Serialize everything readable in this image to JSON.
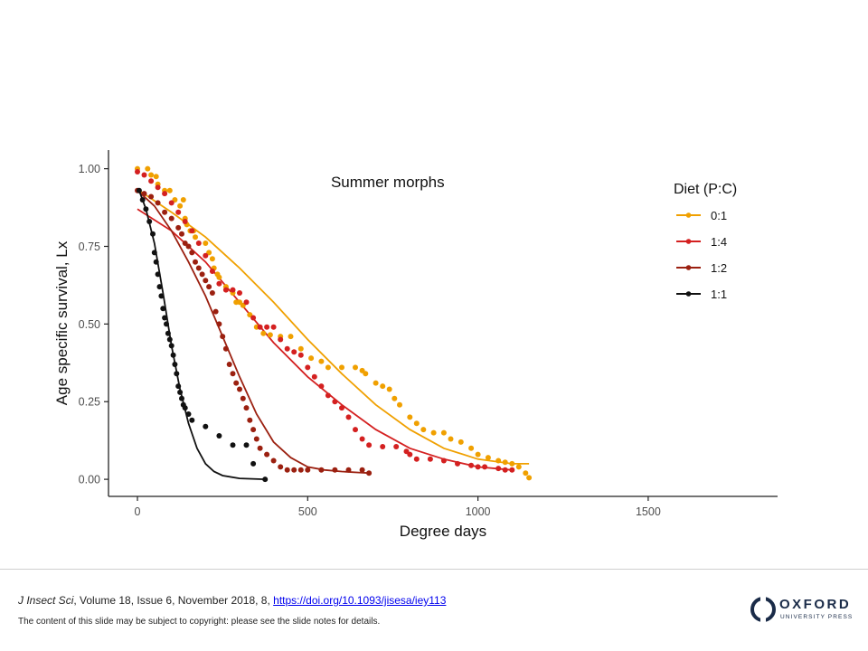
{
  "chart_data": {
    "type": "scatter",
    "title": "Summer morphs",
    "xlabel": "Degree days",
    "ylabel": "Age specific survival, Lx",
    "xlim": [
      -85,
      1880
    ],
    "ylim": [
      -0.055,
      1.06
    ],
    "x_ticks": [
      0,
      500,
      1000,
      1500
    ],
    "x_tick_labels": [
      "0",
      "500",
      "1000",
      "1500"
    ],
    "y_ticks": [
      0,
      0.25,
      0.5,
      0.75,
      1
    ],
    "y_tick_labels": [
      "0.00",
      "0.25",
      "0.50",
      "0.75",
      "1.00"
    ],
    "grid": false,
    "legend_title": "Diet (P:C)",
    "legend_position": "top-right",
    "series": [
      {
        "name": "0:1",
        "color": "#f0a000",
        "points": [
          [
            0,
            1
          ],
          [
            30,
            1
          ],
          [
            40,
            0.98
          ],
          [
            55,
            0.975
          ],
          [
            60,
            0.95
          ],
          [
            80,
            0.93
          ],
          [
            95,
            0.93
          ],
          [
            110,
            0.9
          ],
          [
            135,
            0.9
          ],
          [
            125,
            0.88
          ],
          [
            140,
            0.84
          ],
          [
            145,
            0.82
          ],
          [
            155,
            0.8
          ],
          [
            165,
            0.8
          ],
          [
            170,
            0.78
          ],
          [
            200,
            0.76
          ],
          [
            210,
            0.73
          ],
          [
            220,
            0.71
          ],
          [
            225,
            0.68
          ],
          [
            235,
            0.66
          ],
          [
            240,
            0.65
          ],
          [
            260,
            0.62
          ],
          [
            280,
            0.6
          ],
          [
            290,
            0.57
          ],
          [
            300,
            0.57
          ],
          [
            310,
            0.56
          ],
          [
            330,
            0.53
          ],
          [
            350,
            0.49
          ],
          [
            370,
            0.47
          ],
          [
            390,
            0.465
          ],
          [
            420,
            0.46
          ],
          [
            450,
            0.46
          ],
          [
            480,
            0.42
          ],
          [
            510,
            0.39
          ],
          [
            540,
            0.38
          ],
          [
            560,
            0.36
          ],
          [
            600,
            0.36
          ],
          [
            640,
            0.36
          ],
          [
            660,
            0.35
          ],
          [
            670,
            0.34
          ],
          [
            700,
            0.31
          ],
          [
            720,
            0.3
          ],
          [
            740,
            0.29
          ],
          [
            755,
            0.26
          ],
          [
            770,
            0.24
          ],
          [
            800,
            0.2
          ],
          [
            820,
            0.18
          ],
          [
            840,
            0.16
          ],
          [
            870,
            0.15
          ],
          [
            900,
            0.15
          ],
          [
            920,
            0.13
          ],
          [
            950,
            0.12
          ],
          [
            980,
            0.1
          ],
          [
            1000,
            0.08
          ],
          [
            1030,
            0.07
          ],
          [
            1060,
            0.06
          ],
          [
            1080,
            0.055
          ],
          [
            1100,
            0.05
          ],
          [
            1120,
            0.04
          ],
          [
            1140,
            0.02
          ],
          [
            1150,
            0.005
          ]
        ],
        "fit": [
          [
            5,
            0.93
          ],
          [
            100,
            0.86
          ],
          [
            200,
            0.78
          ],
          [
            300,
            0.68
          ],
          [
            400,
            0.57
          ],
          [
            500,
            0.45
          ],
          [
            600,
            0.34
          ],
          [
            700,
            0.24
          ],
          [
            800,
            0.16
          ],
          [
            900,
            0.1
          ],
          [
            1000,
            0.065
          ],
          [
            1100,
            0.05
          ],
          [
            1150,
            0.05
          ]
        ]
      },
      {
        "name": "1:4",
        "color": "#d42020",
        "points": [
          [
            0,
            0.99
          ],
          [
            20,
            0.98
          ],
          [
            40,
            0.96
          ],
          [
            60,
            0.94
          ],
          [
            80,
            0.92
          ],
          [
            100,
            0.89
          ],
          [
            120,
            0.86
          ],
          [
            140,
            0.83
          ],
          [
            160,
            0.8
          ],
          [
            180,
            0.76
          ],
          [
            200,
            0.72
          ],
          [
            220,
            0.67
          ],
          [
            240,
            0.63
          ],
          [
            260,
            0.61
          ],
          [
            280,
            0.61
          ],
          [
            300,
            0.6
          ],
          [
            320,
            0.57
          ],
          [
            340,
            0.52
          ],
          [
            360,
            0.49
          ],
          [
            380,
            0.49
          ],
          [
            400,
            0.49
          ],
          [
            420,
            0.45
          ],
          [
            440,
            0.42
          ],
          [
            460,
            0.41
          ],
          [
            480,
            0.4
          ],
          [
            500,
            0.36
          ],
          [
            520,
            0.33
          ],
          [
            540,
            0.3
          ],
          [
            560,
            0.27
          ],
          [
            580,
            0.25
          ],
          [
            600,
            0.23
          ],
          [
            620,
            0.2
          ],
          [
            640,
            0.16
          ],
          [
            660,
            0.13
          ],
          [
            680,
            0.11
          ],
          [
            720,
            0.105
          ],
          [
            760,
            0.105
          ],
          [
            790,
            0.09
          ],
          [
            800,
            0.08
          ],
          [
            820,
            0.065
          ],
          [
            860,
            0.065
          ],
          [
            900,
            0.06
          ],
          [
            940,
            0.05
          ],
          [
            980,
            0.045
          ],
          [
            1000,
            0.04
          ],
          [
            1020,
            0.04
          ],
          [
            1060,
            0.035
          ],
          [
            1080,
            0.03
          ],
          [
            1100,
            0.03
          ]
        ],
        "fit": [
          [
            0,
            0.87
          ],
          [
            100,
            0.8
          ],
          [
            200,
            0.7
          ],
          [
            300,
            0.57
          ],
          [
            400,
            0.44
          ],
          [
            500,
            0.33
          ],
          [
            600,
            0.24
          ],
          [
            700,
            0.16
          ],
          [
            800,
            0.1
          ],
          [
            900,
            0.065
          ],
          [
            1000,
            0.04
          ],
          [
            1100,
            0.03
          ]
        ]
      },
      {
        "name": "1:2",
        "color": "#9b2010",
        "points": [
          [
            0,
            0.93
          ],
          [
            20,
            0.92
          ],
          [
            40,
            0.91
          ],
          [
            60,
            0.89
          ],
          [
            80,
            0.86
          ],
          [
            100,
            0.84
          ],
          [
            120,
            0.81
          ],
          [
            130,
            0.79
          ],
          [
            140,
            0.76
          ],
          [
            150,
            0.75
          ],
          [
            160,
            0.73
          ],
          [
            170,
            0.7
          ],
          [
            180,
            0.68
          ],
          [
            190,
            0.66
          ],
          [
            200,
            0.64
          ],
          [
            210,
            0.62
          ],
          [
            220,
            0.6
          ],
          [
            230,
            0.54
          ],
          [
            240,
            0.5
          ],
          [
            250,
            0.46
          ],
          [
            260,
            0.42
          ],
          [
            270,
            0.37
          ],
          [
            280,
            0.34
          ],
          [
            290,
            0.31
          ],
          [
            300,
            0.29
          ],
          [
            310,
            0.26
          ],
          [
            320,
            0.23
          ],
          [
            330,
            0.19
          ],
          [
            340,
            0.16
          ],
          [
            350,
            0.13
          ],
          [
            360,
            0.1
          ],
          [
            380,
            0.08
          ],
          [
            400,
            0.06
          ],
          [
            420,
            0.04
          ],
          [
            440,
            0.03
          ],
          [
            460,
            0.03
          ],
          [
            480,
            0.03
          ],
          [
            500,
            0.03
          ],
          [
            540,
            0.03
          ],
          [
            580,
            0.03
          ],
          [
            620,
            0.03
          ],
          [
            660,
            0.03
          ],
          [
            680,
            0.02
          ]
        ],
        "fit": [
          [
            0,
            0.93
          ],
          [
            50,
            0.88
          ],
          [
            100,
            0.8
          ],
          [
            150,
            0.7
          ],
          [
            200,
            0.59
          ],
          [
            250,
            0.46
          ],
          [
            300,
            0.33
          ],
          [
            350,
            0.21
          ],
          [
            400,
            0.12
          ],
          [
            450,
            0.07
          ],
          [
            500,
            0.04
          ],
          [
            550,
            0.03
          ],
          [
            600,
            0.025
          ],
          [
            650,
            0.022
          ],
          [
            680,
            0.02
          ]
        ]
      },
      {
        "name": "1:1",
        "color": "#111111",
        "points": [
          [
            5,
            0.93
          ],
          [
            15,
            0.9
          ],
          [
            25,
            0.87
          ],
          [
            35,
            0.83
          ],
          [
            45,
            0.79
          ],
          [
            50,
            0.73
          ],
          [
            55,
            0.7
          ],
          [
            60,
            0.66
          ],
          [
            65,
            0.62
          ],
          [
            70,
            0.59
          ],
          [
            75,
            0.55
          ],
          [
            80,
            0.52
          ],
          [
            85,
            0.5
          ],
          [
            90,
            0.47
          ],
          [
            95,
            0.45
          ],
          [
            100,
            0.43
          ],
          [
            105,
            0.4
          ],
          [
            110,
            0.37
          ],
          [
            115,
            0.34
          ],
          [
            120,
            0.3
          ],
          [
            125,
            0.28
          ],
          [
            130,
            0.26
          ],
          [
            135,
            0.24
          ],
          [
            140,
            0.23
          ],
          [
            150,
            0.21
          ],
          [
            160,
            0.19
          ],
          [
            200,
            0.17
          ],
          [
            240,
            0.14
          ],
          [
            280,
            0.11
          ],
          [
            320,
            0.11
          ],
          [
            340,
            0.05
          ],
          [
            375,
            0
          ]
        ],
        "fit": [
          [
            5,
            0.93
          ],
          [
            25,
            0.87
          ],
          [
            50,
            0.76
          ],
          [
            75,
            0.6
          ],
          [
            100,
            0.43
          ],
          [
            125,
            0.29
          ],
          [
            150,
            0.18
          ],
          [
            175,
            0.1
          ],
          [
            200,
            0.05
          ],
          [
            225,
            0.025
          ],
          [
            250,
            0.012
          ],
          [
            300,
            0.003
          ],
          [
            375,
            0
          ]
        ]
      }
    ]
  },
  "footer": {
    "journal": "J Insect Sci",
    "details": ", Volume 18, Issue 6, November 2018, 8, ",
    "doi_text": "https://doi.org/10.1093/jisesa/iey113",
    "copyright": "The content of this slide may be subject to copyright: please see the slide notes for details."
  },
  "logo": {
    "word": "OXFORD",
    "sub": "UNIVERSITY PRESS",
    "color": "#1a2b48"
  }
}
